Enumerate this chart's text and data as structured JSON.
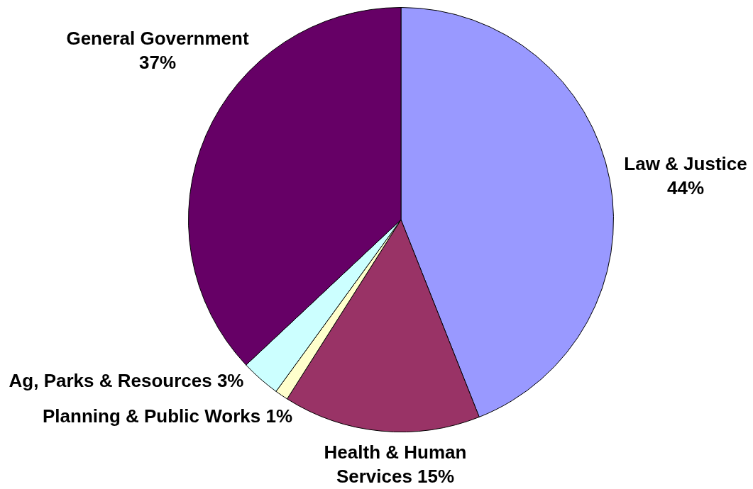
{
  "chart_data": {
    "type": "pie",
    "categories": [
      "Law & Justice",
      "Health & Human Services",
      "Planning & Public Works",
      "Ag, Parks & Resources",
      "General Government"
    ],
    "values": [
      44,
      15,
      1,
      3,
      37
    ],
    "colors": [
      "#9999ff",
      "#993366",
      "#ffffcc",
      "#ccffff",
      "#660066"
    ],
    "value_labels": [
      "44%",
      "15%",
      "1%",
      "3%",
      "37%"
    ],
    "legend": false
  }
}
